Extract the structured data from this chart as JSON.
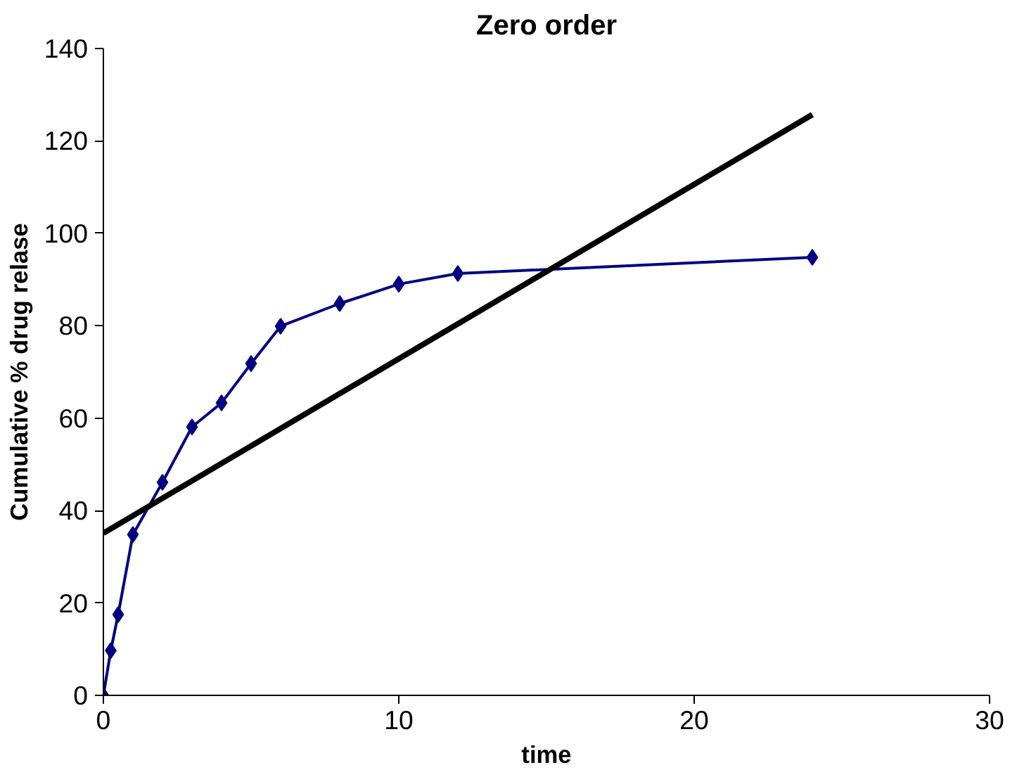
{
  "chart_data": {
    "type": "line",
    "title": "Zero order",
    "xlabel": "time",
    "ylabel": "Cumulative % drug relase",
    "xlim": [
      0,
      30
    ],
    "ylim": [
      0,
      140
    ],
    "xticks": [
      0,
      10,
      20,
      30
    ],
    "yticks": [
      0,
      20,
      40,
      60,
      80,
      100,
      120,
      140
    ],
    "grid": false,
    "marker": "diamond",
    "line_style": "solid",
    "series": [
      {
        "x": [
          0,
          0.25,
          0.5,
          1,
          2,
          3,
          4,
          5,
          6,
          8,
          10,
          12,
          24
        ],
        "values": [
          0,
          9.7,
          17.5,
          34.8,
          46.1,
          58.1,
          63.3,
          71.8,
          79.9,
          84.8,
          89,
          91.3,
          94.8
        ],
        "color": "#000080"
      },
      {
        "type": "line",
        "marker": "none",
        "x": [
          0,
          24
        ],
        "values": [
          35.1,
          125.7
        ],
        "color": "#000000"
      }
    ]
  }
}
